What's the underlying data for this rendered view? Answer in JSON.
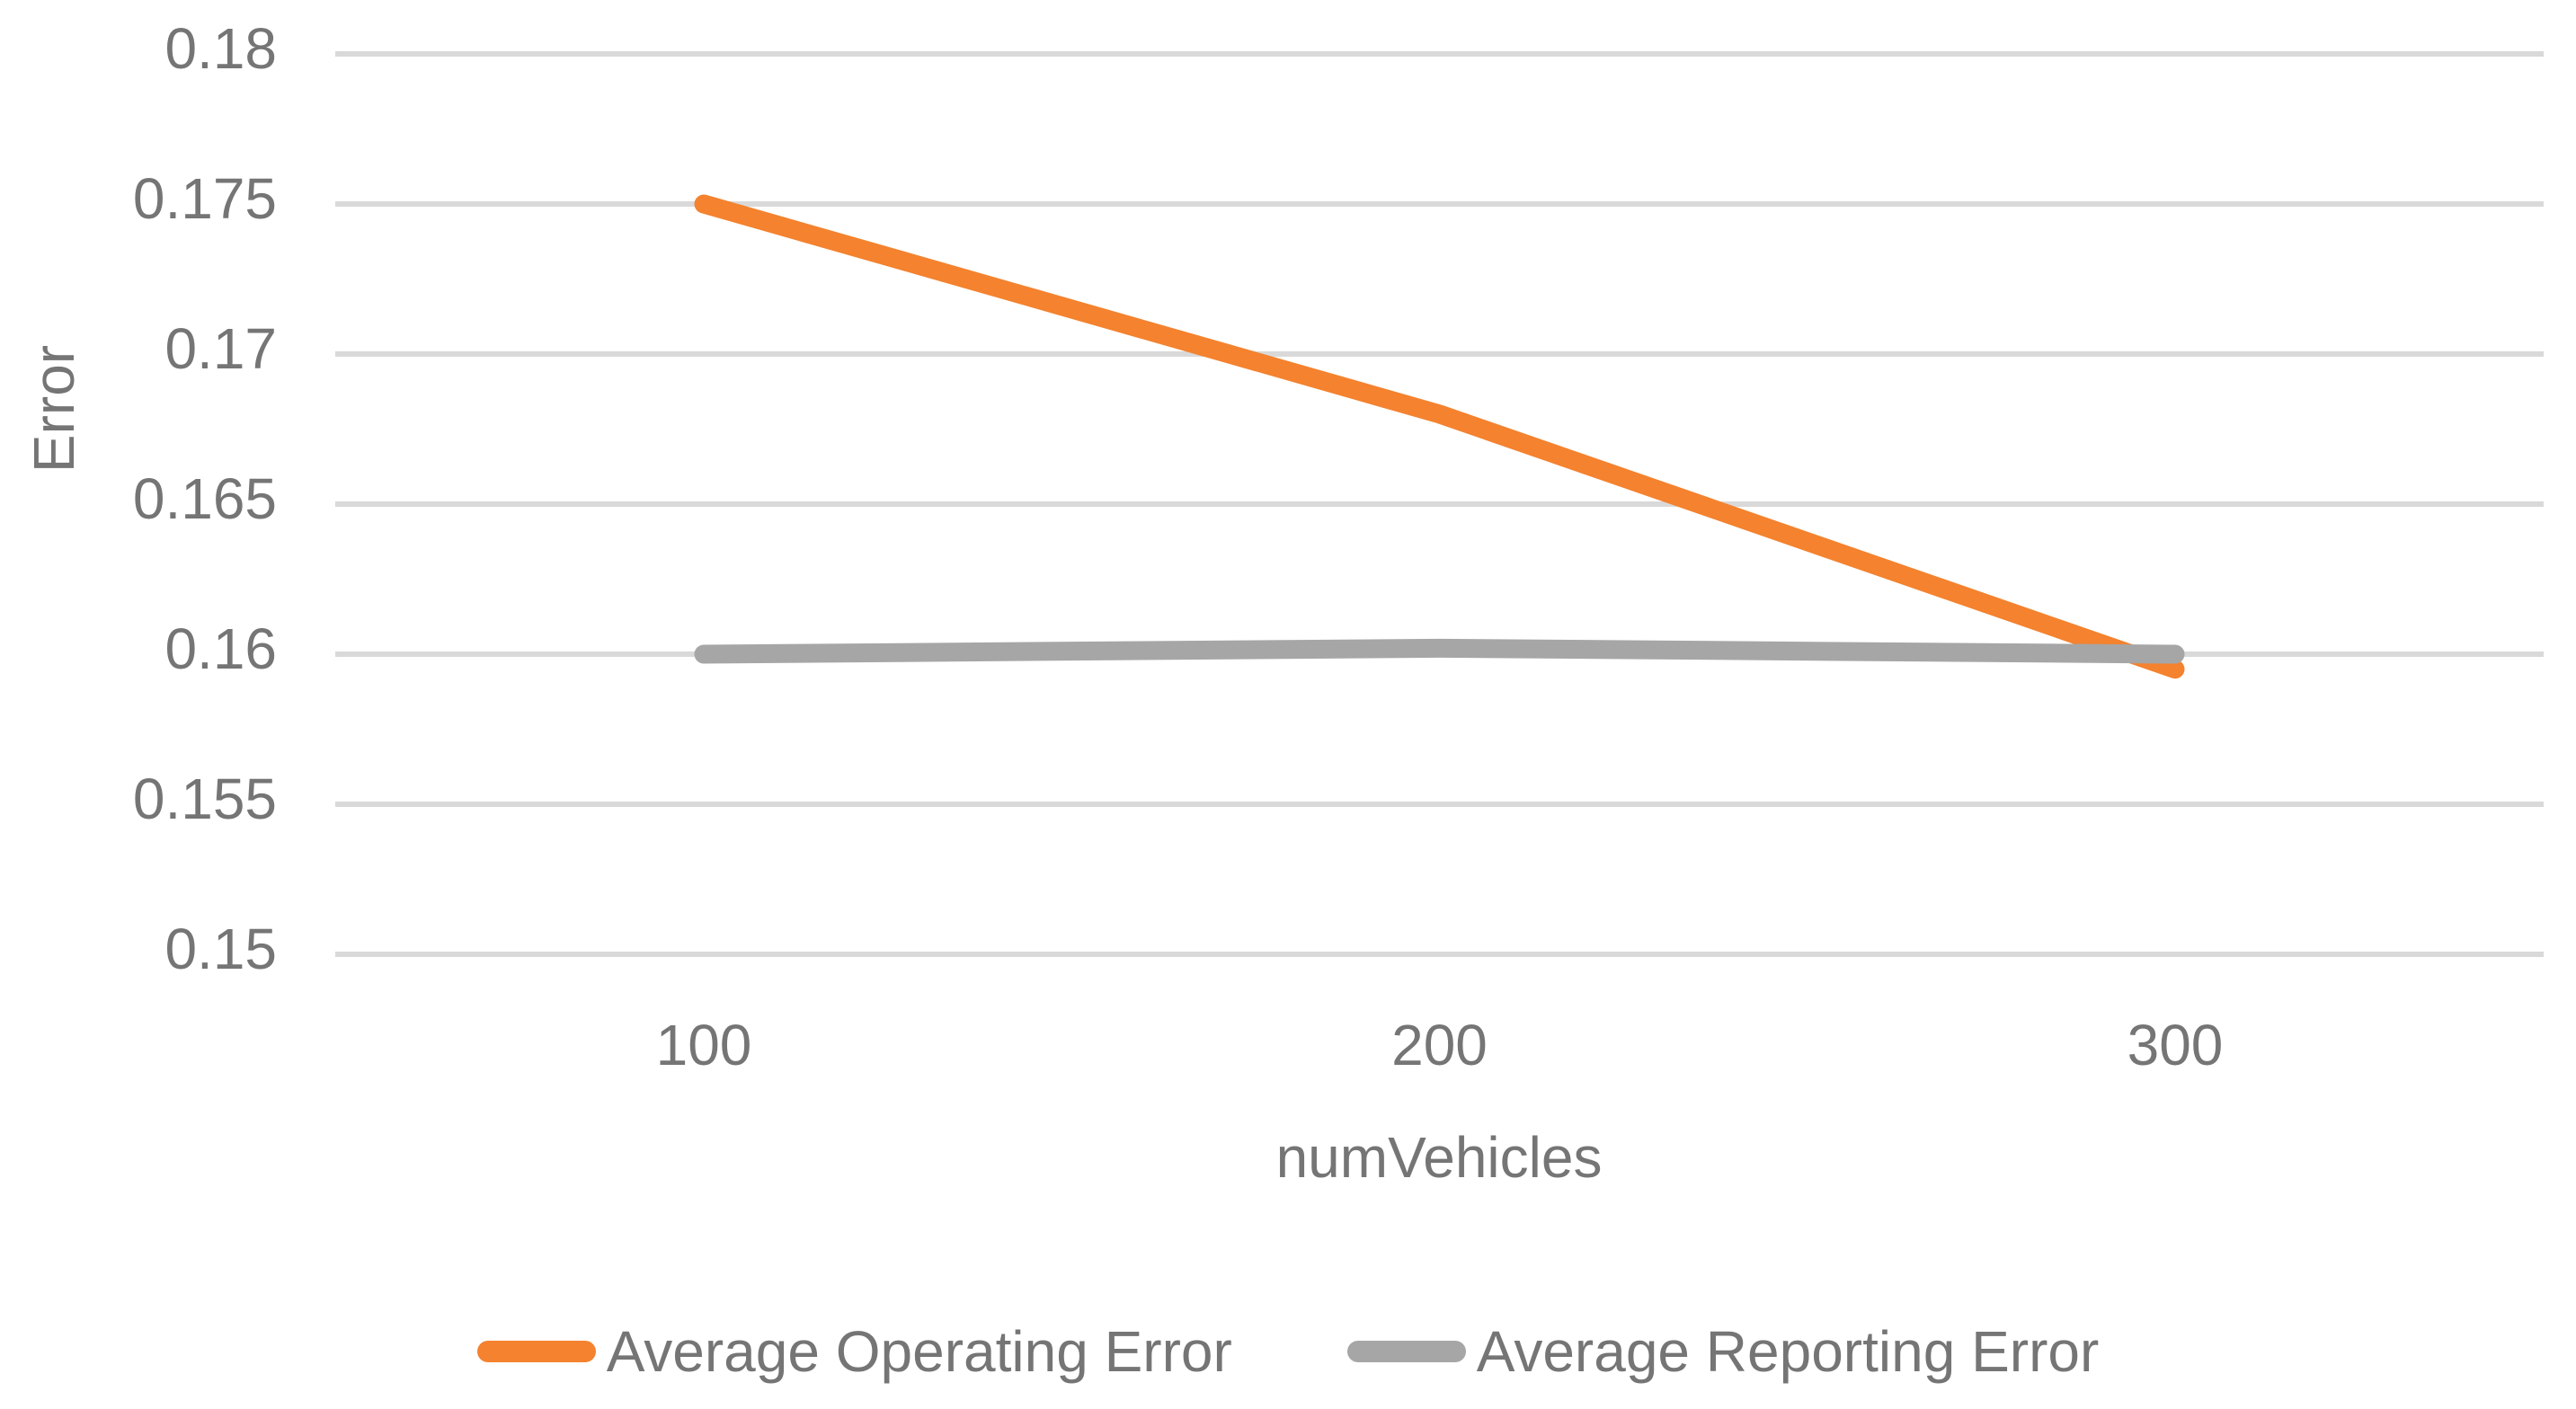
{
  "chart_data": {
    "type": "line",
    "title": "",
    "xlabel": "numVehicles",
    "ylabel": "Error",
    "x": [
      100,
      200,
      300
    ],
    "xtick_labels": [
      "100",
      "200",
      "300"
    ],
    "series": [
      {
        "name": "Average Operating Error",
        "color": "#F4822E",
        "values": [
          0.175,
          0.168,
          0.1595
        ]
      },
      {
        "name": "Average Reporting Error",
        "color": "#A6A6A6",
        "values": [
          0.16,
          0.1602,
          0.16
        ]
      }
    ],
    "ylim": [
      0.15,
      0.18
    ],
    "yticks": [
      0.18,
      0.175,
      0.17,
      0.165,
      0.16,
      0.155,
      0.15
    ],
    "ytick_labels": [
      "0.18",
      "0.175",
      "0.17",
      "0.165",
      "0.16",
      "0.155",
      "0.15"
    ],
    "grid": "horizontal-only",
    "legend_position": "bottom",
    "colors": {
      "gridline": "#D9D9D9",
      "axis_text": "#757575",
      "background": "#FFFFFF"
    }
  }
}
